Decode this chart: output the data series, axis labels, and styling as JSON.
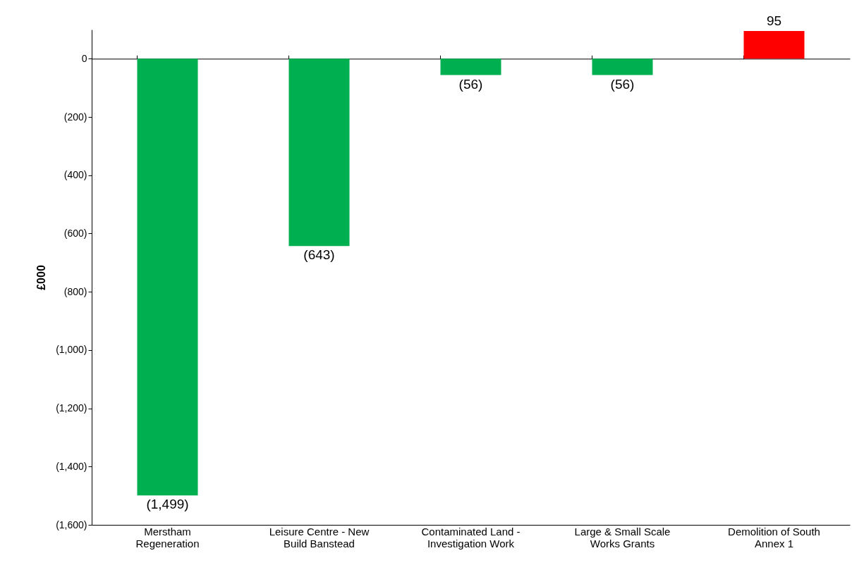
{
  "chart_data": {
    "type": "bar",
    "ylabel": "£000",
    "categories": [
      "Merstham Regeneration",
      "Leisure Centre - New Build Banstead",
      "Contaminated Land - Investigation Work",
      "Large & Small Scale Works Grants",
      "Demolition of South Annex 1"
    ],
    "values": [
      -1499,
      -643,
      -56,
      -56,
      95
    ],
    "colors": [
      "#00b050",
      "#00b050",
      "#00b050",
      "#00b050",
      "#ff0000"
    ],
    "value_labels": [
      "(1,499)",
      "(643)",
      "(56)",
      "(56)",
      "95"
    ],
    "ylim": [
      -1600,
      100
    ],
    "yticks": [
      {
        "value": -1600,
        "label": "(1,600)"
      },
      {
        "value": -1400,
        "label": "(1,400)"
      },
      {
        "value": -1200,
        "label": "(1,200)"
      },
      {
        "value": -1000,
        "label": "(1,000)"
      },
      {
        "value": -800,
        "label": "(800)"
      },
      {
        "value": -600,
        "label": "(600)"
      },
      {
        "value": -400,
        "label": "(400)"
      },
      {
        "value": -200,
        "label": "(200)"
      },
      0
    ]
  }
}
